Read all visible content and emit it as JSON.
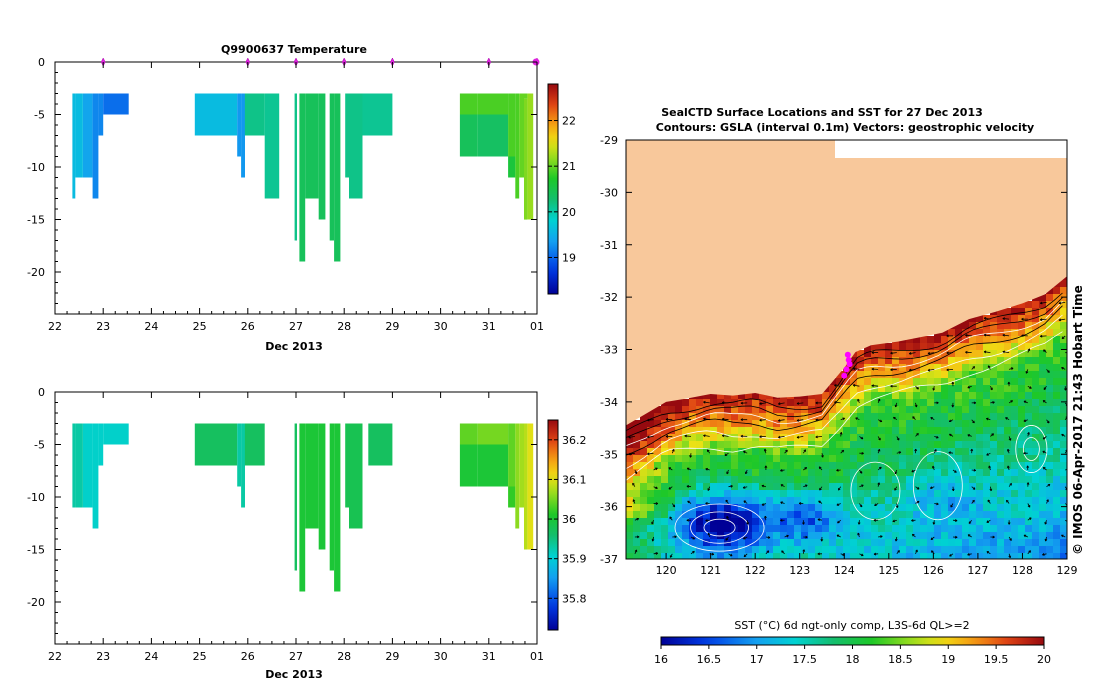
{
  "chart_data": [
    {
      "type": "heatmap",
      "title": "Q9900637  Temperature",
      "xlabel": "Dec 2013",
      "ylabel": "",
      "x_ticks": [
        "22",
        "23",
        "24",
        "25",
        "26",
        "27",
        "28",
        "29",
        "30",
        "31",
        "01"
      ],
      "y_ticks": [
        "0",
        "-5",
        "-10",
        "-15",
        "-20"
      ],
      "xlim": [
        22,
        32
      ],
      "ylim": [
        -24,
        0
      ],
      "colorbar": {
        "ticks": [
          "19",
          "20",
          "21",
          "22"
        ],
        "range": [
          18.2,
          22.8
        ]
      },
      "profile_times": [
        23,
        26,
        27,
        28,
        29,
        31,
        32
      ],
      "columns": [
        {
          "x0": 22.36,
          "x1": 22.42,
          "segments": [
            {
              "d0": 3,
              "d1": 13,
              "v": 19.6
            }
          ]
        },
        {
          "x0": 22.42,
          "x1": 22.58,
          "segments": [
            {
              "d0": 3,
              "d1": 11,
              "v": 19.6
            }
          ]
        },
        {
          "x0": 22.58,
          "x1": 22.78,
          "segments": [
            {
              "d0": 3,
              "d1": 11,
              "v": 19.4
            }
          ]
        },
        {
          "x0": 22.78,
          "x1": 22.9,
          "segments": [
            {
              "d0": 3,
              "d1": 13,
              "v": 19.2
            }
          ]
        },
        {
          "x0": 22.9,
          "x1": 23.0,
          "segments": [
            {
              "d0": 3,
              "d1": 7,
              "v": 19.2
            }
          ]
        },
        {
          "x0": 23.0,
          "x1": 23.53,
          "segments": [
            {
              "d0": 3,
              "d1": 5,
              "v": 19.05
            }
          ]
        },
        {
          "x0": 24.9,
          "x1": 25.78,
          "segments": [
            {
              "d0": 3,
              "d1": 7,
              "v": 19.6
            }
          ]
        },
        {
          "x0": 25.78,
          "x1": 25.86,
          "segments": [
            {
              "d0": 3,
              "d1": 9,
              "v": 19.3
            }
          ]
        },
        {
          "x0": 25.86,
          "x1": 25.94,
          "segments": [
            {
              "d0": 3,
              "d1": 11,
              "v": 19.3
            }
          ]
        },
        {
          "x0": 25.94,
          "x1": 26.35,
          "segments": [
            {
              "d0": 3,
              "d1": 7,
              "v": 20.15
            }
          ]
        },
        {
          "x0": 26.35,
          "x1": 26.65,
          "segments": [
            {
              "d0": 3,
              "d1": 13,
              "v": 20.1
            }
          ]
        },
        {
          "x0": 26.97,
          "x1": 27.02,
          "segments": [
            {
              "d0": 3,
              "d1": 17,
              "v": 20.15
            }
          ]
        },
        {
          "x0": 27.07,
          "x1": 27.19,
          "segments": [
            {
              "d0": 3,
              "d1": 19,
              "v": 20.4
            }
          ]
        },
        {
          "x0": 27.19,
          "x1": 27.47,
          "segments": [
            {
              "d0": 3,
              "d1": 13,
              "v": 20.4
            }
          ]
        },
        {
          "x0": 27.47,
          "x1": 27.61,
          "segments": [
            {
              "d0": 3,
              "d1": 15,
              "v": 20.4
            }
          ]
        },
        {
          "x0": 27.7,
          "x1": 27.79,
          "segments": [
            {
              "d0": 3,
              "d1": 17,
              "v": 20.4
            }
          ]
        },
        {
          "x0": 27.79,
          "x1": 27.92,
          "segments": [
            {
              "d0": 3,
              "d1": 19,
              "v": 20.4
            }
          ]
        },
        {
          "x0": 28.02,
          "x1": 28.1,
          "segments": [
            {
              "d0": 3,
              "d1": 11,
              "v": 20.15
            }
          ]
        },
        {
          "x0": 28.1,
          "x1": 28.38,
          "segments": [
            {
              "d0": 3,
              "d1": 13,
              "v": 20.15
            }
          ]
        },
        {
          "x0": 28.38,
          "x1": 29.0,
          "segments": [
            {
              "d0": 3,
              "d1": 7,
              "v": 20.1
            }
          ]
        },
        {
          "x0": 30.4,
          "x1": 30.77,
          "segments": [
            {
              "d0": 3,
              "d1": 5,
              "v": 20.9
            },
            {
              "d0": 5,
              "d1": 9,
              "v": 20.4
            }
          ]
        },
        {
          "x0": 30.77,
          "x1": 31.4,
          "segments": [
            {
              "d0": 3,
              "d1": 5,
              "v": 20.9
            },
            {
              "d0": 5,
              "d1": 9,
              "v": 20.35
            }
          ]
        },
        {
          "x0": 31.4,
          "x1": 31.55,
          "segments": [
            {
              "d0": 3,
              "d1": 9,
              "v": 20.9
            },
            {
              "d0": 9,
              "d1": 11,
              "v": 20.6
            }
          ]
        },
        {
          "x0": 31.55,
          "x1": 31.63,
          "segments": [
            {
              "d0": 3,
              "d1": 13,
              "v": 20.9
            }
          ]
        },
        {
          "x0": 31.63,
          "x1": 31.73,
          "segments": [
            {
              "d0": 3,
              "d1": 11,
              "v": 21.0
            }
          ]
        },
        {
          "x0": 31.73,
          "x1": 31.8,
          "segments": [
            {
              "d0": 3,
              "d1": 3.5,
              "v": 21.0
            },
            {
              "d0": 3.5,
              "d1": 15,
              "v": 21.1
            }
          ]
        },
        {
          "x0": 31.8,
          "x1": 31.92,
          "segments": [
            {
              "d0": 3,
              "d1": 15,
              "v": 21.2
            }
          ]
        }
      ]
    },
    {
      "type": "heatmap",
      "title": "",
      "xlabel": "Dec 2013",
      "ylabel": "",
      "x_ticks": [
        "22",
        "23",
        "24",
        "25",
        "26",
        "27",
        "28",
        "29",
        "30",
        "31",
        "01"
      ],
      "y_ticks": [
        "0",
        "-5",
        "-10",
        "-15",
        "-20"
      ],
      "xlim": [
        22,
        32
      ],
      "ylim": [
        -24,
        0
      ],
      "colorbar": {
        "ticks": [
          "35.8",
          "35.9",
          "36",
          "36.1",
          "36.2"
        ],
        "range": [
          35.72,
          36.25
        ]
      },
      "columns": [
        {
          "x0": 22.36,
          "x1": 22.42,
          "segments": [
            {
              "d0": 3,
              "d1": 11,
              "v": 35.93
            }
          ]
        },
        {
          "x0": 22.42,
          "x1": 22.58,
          "segments": [
            {
              "d0": 3,
              "d1": 11,
              "v": 35.93
            }
          ]
        },
        {
          "x0": 22.58,
          "x1": 22.78,
          "segments": [
            {
              "d0": 3,
              "d1": 11,
              "v": 35.91
            }
          ]
        },
        {
          "x0": 22.78,
          "x1": 22.9,
          "segments": [
            {
              "d0": 3,
              "d1": 13,
              "v": 35.91
            }
          ]
        },
        {
          "x0": 22.9,
          "x1": 23.0,
          "segments": [
            {
              "d0": 3,
              "d1": 7,
              "v": 35.91
            }
          ]
        },
        {
          "x0": 23.0,
          "x1": 23.53,
          "segments": [
            {
              "d0": 3,
              "d1": 5,
              "v": 35.91
            }
          ]
        },
        {
          "x0": 24.9,
          "x1": 25.78,
          "segments": [
            {
              "d0": 3,
              "d1": 7,
              "v": 35.97
            }
          ]
        },
        {
          "x0": 25.78,
          "x1": 25.86,
          "segments": [
            {
              "d0": 3,
              "d1": 9,
              "v": 35.93
            }
          ]
        },
        {
          "x0": 25.86,
          "x1": 25.94,
          "segments": [
            {
              "d0": 3,
              "d1": 11,
              "v": 35.93
            }
          ]
        },
        {
          "x0": 25.94,
          "x1": 26.35,
          "segments": [
            {
              "d0": 3,
              "d1": 7,
              "v": 35.97
            }
          ]
        },
        {
          "x0": 26.97,
          "x1": 27.02,
          "segments": [
            {
              "d0": 3,
              "d1": 17,
              "v": 35.97
            }
          ]
        },
        {
          "x0": 27.07,
          "x1": 27.19,
          "segments": [
            {
              "d0": 3,
              "d1": 19,
              "v": 36.0
            }
          ]
        },
        {
          "x0": 27.19,
          "x1": 27.47,
          "segments": [
            {
              "d0": 3,
              "d1": 13,
              "v": 36.0
            }
          ]
        },
        {
          "x0": 27.47,
          "x1": 27.61,
          "segments": [
            {
              "d0": 3,
              "d1": 15,
              "v": 36.0
            }
          ]
        },
        {
          "x0": 27.7,
          "x1": 27.79,
          "segments": [
            {
              "d0": 3,
              "d1": 17,
              "v": 36.0
            }
          ]
        },
        {
          "x0": 27.79,
          "x1": 27.92,
          "segments": [
            {
              "d0": 3,
              "d1": 19,
              "v": 36.0
            }
          ]
        },
        {
          "x0": 28.02,
          "x1": 28.1,
          "segments": [
            {
              "d0": 3,
              "d1": 11,
              "v": 35.98
            }
          ]
        },
        {
          "x0": 28.1,
          "x1": 28.38,
          "segments": [
            {
              "d0": 3,
              "d1": 13,
              "v": 35.98
            }
          ]
        },
        {
          "x0": 28.5,
          "x1": 29.0,
          "segments": [
            {
              "d0": 3,
              "d1": 7,
              "v": 35.97
            }
          ]
        },
        {
          "x0": 30.4,
          "x1": 30.77,
          "segments": [
            {
              "d0": 3,
              "d1": 5,
              "v": 36.04
            },
            {
              "d0": 5,
              "d1": 9,
              "v": 36.0
            }
          ]
        },
        {
          "x0": 30.77,
          "x1": 31.4,
          "segments": [
            {
              "d0": 3,
              "d1": 5,
              "v": 36.05
            },
            {
              "d0": 5,
              "d1": 9,
              "v": 36.0
            }
          ]
        },
        {
          "x0": 31.4,
          "x1": 31.55,
          "segments": [
            {
              "d0": 3,
              "d1": 9,
              "v": 36.04
            },
            {
              "d0": 9,
              "d1": 11,
              "v": 36.02
            }
          ]
        },
        {
          "x0": 31.55,
          "x1": 31.63,
          "segments": [
            {
              "d0": 3,
              "d1": 13,
              "v": 36.06
            }
          ]
        },
        {
          "x0": 31.63,
          "x1": 31.73,
          "segments": [
            {
              "d0": 3,
              "d1": 11,
              "v": 36.07
            }
          ]
        },
        {
          "x0": 31.73,
          "x1": 31.8,
          "segments": [
            {
              "d0": 3,
              "d1": 15,
              "v": 36.08
            }
          ]
        },
        {
          "x0": 31.8,
          "x1": 31.92,
          "segments": [
            {
              "d0": 3,
              "d1": 15,
              "v": 36.1
            }
          ]
        }
      ]
    },
    {
      "type": "heatmap",
      "title": "SealCTD Surface Locations and SST for 27 Dec 2013",
      "subtitle": "Contours: GSLA (interval 0.1m) Vectors: geostrophic velocity",
      "xlabel": "",
      "ylabel": "",
      "x_ticks": [
        "120",
        "121",
        "122",
        "123",
        "124",
        "125",
        "126",
        "127",
        "128",
        "129"
      ],
      "y_ticks": [
        "-29",
        "-30",
        "-31",
        "-32",
        "-33",
        "-34",
        "-35",
        "-36",
        "-37"
      ],
      "xlim": [
        119.1,
        129
      ],
      "ylim": [
        -37,
        -29
      ],
      "colorbar": {
        "label": "SST (°C) 6d ngt-only comp, L3S-6d QL>=2",
        "ticks": [
          "16",
          "16.5",
          "17",
          "17.5",
          "18",
          "18.5",
          "19",
          "19.5",
          "20"
        ],
        "range": [
          16,
          20
        ]
      },
      "coast_lat": [
        {
          "lon": 119.1,
          "lat": -34.45
        },
        {
          "lon": 119.5,
          "lat": -34.25
        },
        {
          "lon": 120.0,
          "lat": -34.0
        },
        {
          "lon": 120.5,
          "lat": -33.93
        },
        {
          "lon": 121.0,
          "lat": -33.85
        },
        {
          "lon": 121.5,
          "lat": -33.88
        },
        {
          "lon": 122.0,
          "lat": -33.83
        },
        {
          "lon": 122.5,
          "lat": -33.92
        },
        {
          "lon": 123.0,
          "lat": -33.9
        },
        {
          "lon": 123.5,
          "lat": -33.85
        },
        {
          "lon": 123.8,
          "lat": -33.55
        },
        {
          "lon": 124.0,
          "lat": -33.35
        },
        {
          "lon": 124.25,
          "lat": -33.05
        },
        {
          "lon": 124.6,
          "lat": -32.92
        },
        {
          "lon": 125.2,
          "lat": -32.85
        },
        {
          "lon": 125.8,
          "lat": -32.75
        },
        {
          "lon": 126.2,
          "lat": -32.68
        },
        {
          "lon": 126.8,
          "lat": -32.42
        },
        {
          "lon": 127.4,
          "lat": -32.28
        },
        {
          "lon": 128.0,
          "lat": -32.12
        },
        {
          "lon": 128.5,
          "lat": -31.95
        },
        {
          "lon": 129.0,
          "lat": -31.6
        }
      ],
      "seal_positions": [
        {
          "lon": 124.1,
          "lat": -33.2
        },
        {
          "lon": 124.12,
          "lat": -33.28
        },
        {
          "lon": 124.05,
          "lat": -33.38
        },
        {
          "lon": 124.0,
          "lat": -33.5
        },
        {
          "lon": 124.08,
          "lat": -33.1
        }
      ],
      "stamp": "© IMOS 06-Apr-2017 21:43 Hobart Time"
    }
  ]
}
